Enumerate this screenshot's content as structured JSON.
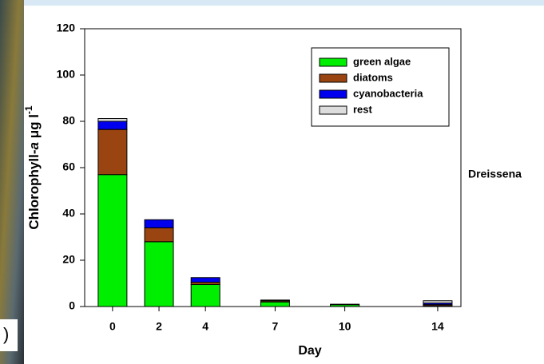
{
  "chart_data": {
    "type": "stacked_bar",
    "x_label": "Day",
    "y_label_parts": [
      "Chlorophyll-",
      "a",
      " μg l",
      "-1"
    ],
    "annotations": [
      "Dreissena",
      ")"
    ],
    "x": [
      0,
      2,
      4,
      7,
      10,
      14
    ],
    "xlim": [
      -1.2,
      15
    ],
    "xticks": [
      0,
      2,
      4,
      7,
      10,
      14
    ],
    "ylim": [
      0,
      120
    ],
    "yticks": [
      0,
      20,
      40,
      60,
      80,
      100,
      120
    ],
    "legend": "upper right",
    "series": [
      {
        "name": "green algae",
        "color": "#00ee00",
        "values": [
          57,
          28,
          9.5,
          2,
          0.8,
          0.3
        ]
      },
      {
        "name": "diatoms",
        "color": "#994411",
        "values": [
          19.5,
          6,
          1,
          0.5,
          0.2,
          0.5
        ]
      },
      {
        "name": "cyanobacteria",
        "color": "#0000ee",
        "values": [
          3.5,
          3.5,
          2,
          0,
          0,
          0.7
        ]
      },
      {
        "name": "rest",
        "color": "#dddddd",
        "values": [
          1.2,
          0,
          0,
          0.3,
          0,
          1
        ]
      }
    ]
  }
}
